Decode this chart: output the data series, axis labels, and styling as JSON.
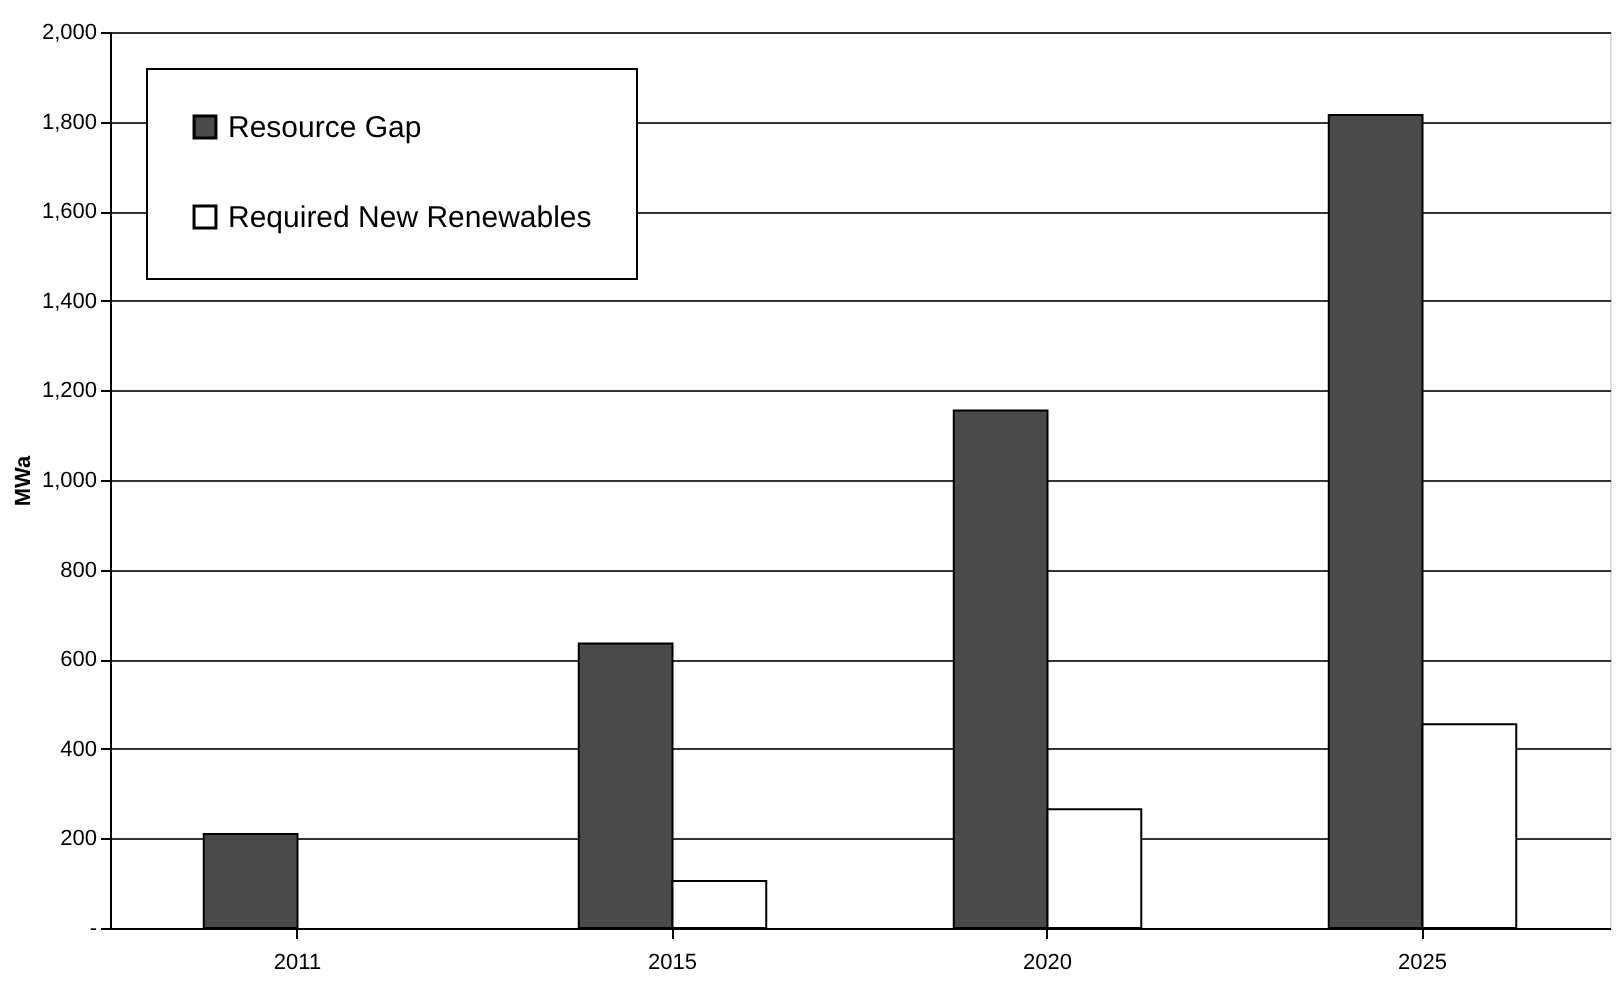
{
  "chart_data": {
    "type": "bar",
    "ylabel": "MWa",
    "categories": [
      "2011",
      "2015",
      "2020",
      "2025"
    ],
    "series": [
      {
        "name": "Resource Gap",
        "color": "#4a4a4a",
        "values": [
          210,
          635,
          1155,
          1815
        ]
      },
      {
        "name": "Required New Renewables",
        "color": "#ffffff",
        "values": [
          null,
          105,
          265,
          455
        ]
      }
    ],
    "ylim": [
      0,
      2000
    ],
    "yticks": [
      {
        "value": 0,
        "label": "-"
      },
      {
        "value": 200,
        "label": "200"
      },
      {
        "value": 400,
        "label": "400"
      },
      {
        "value": 600,
        "label": "600"
      },
      {
        "value": 800,
        "label": "800"
      },
      {
        "value": 1000,
        "label": "1,000"
      },
      {
        "value": 1200,
        "label": "1,200"
      },
      {
        "value": 1400,
        "label": "1,400"
      },
      {
        "value": 1600,
        "label": "1,600"
      },
      {
        "value": 1800,
        "label": "1,800"
      },
      {
        "value": 2000,
        "label": "2,000"
      }
    ],
    "grid": "y",
    "legend": "top left"
  }
}
